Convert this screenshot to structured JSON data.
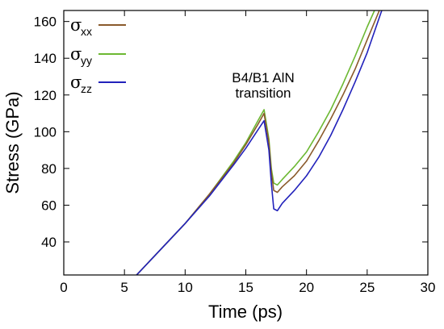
{
  "chart_data": {
    "type": "line",
    "title": "",
    "xlabel": "Time (ps)",
    "ylabel": "Stress (GPa)",
    "xlim": [
      0,
      30
    ],
    "ylim": [
      22,
      166
    ],
    "xticks": [
      0,
      5,
      10,
      15,
      20,
      25,
      30
    ],
    "yticks": [
      40,
      60,
      80,
      100,
      120,
      140,
      160
    ],
    "grid": false,
    "legend_position": "top-left",
    "annotation": [
      "B4/B1 AlN",
      "transition"
    ],
    "series": [
      {
        "name": "σ_xx",
        "legend_symbol": "σ",
        "legend_sub": "xx",
        "color": "#8a5a2b",
        "x": [
          6,
          8,
          10,
          12,
          14,
          15,
          16,
          16.5,
          16.9,
          17.1,
          17.3,
          17.6,
          18,
          19,
          20,
          21,
          22,
          23,
          24,
          25,
          26
        ],
        "y": [
          22,
          36,
          50,
          66,
          83,
          93,
          104,
          110,
          94,
          78,
          68,
          67,
          70,
          76,
          84,
          95,
          107,
          120,
          134,
          150,
          166
        ]
      },
      {
        "name": "σ_yy",
        "legend_symbol": "σ",
        "legend_sub": "yy",
        "color": "#6cb832",
        "x": [
          6,
          8,
          10,
          12,
          14,
          15,
          16,
          16.5,
          16.9,
          17.1,
          17.3,
          17.6,
          18,
          19,
          20,
          21,
          22,
          23,
          24,
          25,
          25.6
        ],
        "y": [
          22,
          36,
          50,
          66,
          84,
          94,
          106,
          112,
          96,
          80,
          72,
          71,
          74,
          81,
          89,
          100,
          112,
          126,
          141,
          157,
          166
        ]
      },
      {
        "name": "σ_zz",
        "legend_symbol": "σ",
        "legend_sub": "zz",
        "color": "#2222bb",
        "x": [
          6,
          8,
          10,
          12,
          14,
          15,
          16,
          16.5,
          16.9,
          17.1,
          17.3,
          17.6,
          18,
          19,
          20,
          21,
          22,
          23,
          24,
          25,
          26.2
        ],
        "y": [
          22,
          36,
          50,
          65,
          82,
          91,
          101,
          106,
          90,
          72,
          58,
          57,
          61,
          68,
          76,
          86,
          98,
          112,
          127,
          143,
          166
        ]
      }
    ]
  }
}
